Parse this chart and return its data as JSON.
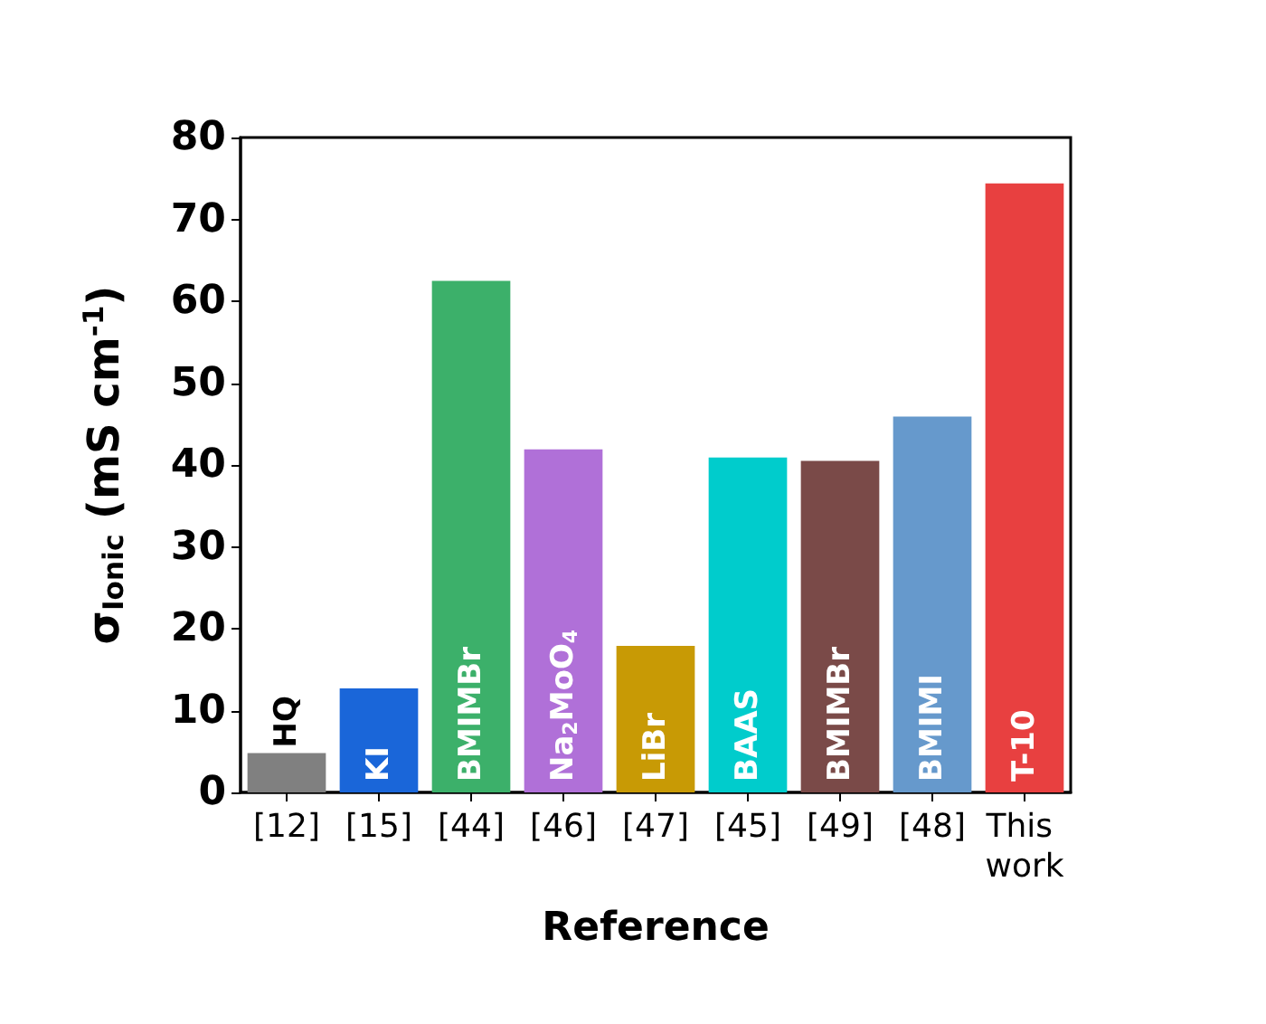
{
  "chart_data": {
    "type": "bar",
    "categories": [
      "[12]",
      "[15]",
      "[44]",
      "[46]",
      "[47]",
      "[45]",
      "[49]",
      "[48]",
      "This work"
    ],
    "values": [
      4.8,
      12.7,
      62.5,
      41.9,
      17.9,
      40.9,
      40.5,
      45.9,
      74.4
    ],
    "colors": [
      "#808080",
      "#1a66d9",
      "#3cb06a",
      "#b070d8",
      "#c89a05",
      "#00cccc",
      "#7a4a48",
      "#6699cc",
      "#e84040"
    ],
    "xlabel": "Reference",
    "ylabel": "σ$_{Ionic}$ (mS cm$^{-1}$)",
    "ylim": [
      0,
      80
    ],
    "yticks": [
      0,
      10,
      20,
      30,
      40,
      50,
      60,
      70,
      80
    ],
    "grid": false,
    "annotations": [
      "HQ",
      "KI",
      "BMIMBr",
      "Na$_{2}$MoO$_{4}$",
      "LiBr",
      "BAAS",
      "BMIMBr",
      "BMIMI",
      "T-10"
    ]
  }
}
